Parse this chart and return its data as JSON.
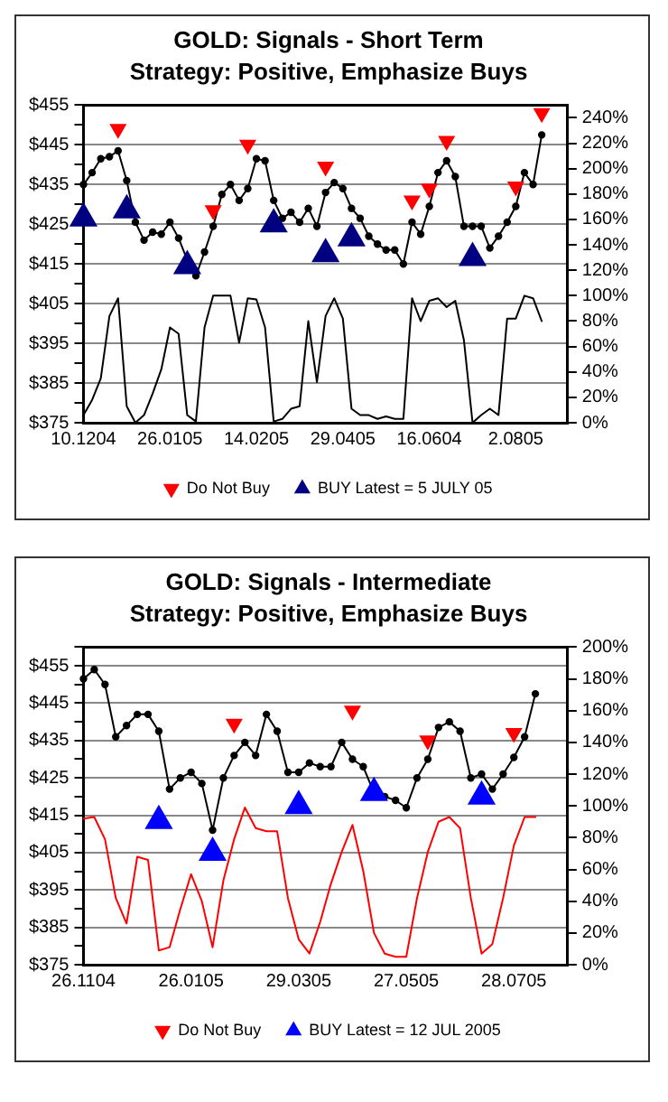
{
  "chart_data": [
    {
      "type": "line",
      "title": "GOLD: Signals - Short Term",
      "subtitle": "Strategy: Positive, Emphasize Buys",
      "grid": "y",
      "legend": "bottom",
      "line_style": "solid",
      "categories": [
        "10.1204",
        null,
        null,
        null,
        null,
        null,
        null,
        null,
        null,
        null,
        "26.0105",
        null,
        null,
        null,
        null,
        null,
        null,
        null,
        null,
        null,
        "14.0205",
        null,
        null,
        null,
        null,
        null,
        null,
        null,
        null,
        null,
        "29.0405",
        null,
        null,
        null,
        null,
        null,
        null,
        null,
        null,
        null,
        "16.0604",
        null,
        null,
        null,
        null,
        null,
        null,
        null,
        null,
        null,
        "2.0805",
        null,
        null,
        null,
        null,
        null,
        null
      ],
      "ylim": [
        375,
        455
      ],
      "yticks": [
        {
          "value": 375,
          "label": "$375"
        },
        {
          "value": 380,
          "label": null
        },
        {
          "value": 385,
          "label": "$385"
        },
        {
          "value": 390,
          "label": null
        },
        {
          "value": 395,
          "label": "$395"
        },
        {
          "value": 400,
          "label": null
        },
        {
          "value": 405,
          "label": "$405"
        },
        {
          "value": 410,
          "label": null
        },
        {
          "value": 415,
          "label": "$415"
        },
        {
          "value": 420,
          "label": null
        },
        {
          "value": 425,
          "label": "$425"
        },
        {
          "value": 430,
          "label": null
        },
        {
          "value": 435,
          "label": "$435"
        },
        {
          "value": 440,
          "label": null
        },
        {
          "value": 445,
          "label": "$445"
        },
        {
          "value": 450,
          "label": null
        },
        {
          "value": 455,
          "label": "$455"
        }
      ],
      "y2lim": [
        0,
        250
      ],
      "y2ticks": [
        {
          "value": 0,
          "label": "0%"
        },
        {
          "value": 20,
          "label": "20%"
        },
        {
          "value": 40,
          "label": "40%"
        },
        {
          "value": 60,
          "label": "60%"
        },
        {
          "value": 80,
          "label": "80%"
        },
        {
          "value": 100,
          "label": "100%"
        },
        {
          "value": 120,
          "label": "120%"
        },
        {
          "value": 140,
          "label": "140%"
        },
        {
          "value": 160,
          "label": "160%"
        },
        {
          "value": 180,
          "label": "180%"
        },
        {
          "value": 200,
          "label": "200%"
        },
        {
          "value": 220,
          "label": "220%"
        },
        {
          "value": 240,
          "label": "240%"
        }
      ],
      "series": [
        {
          "type": "line",
          "color": "#000000",
          "marker": "circle",
          "values": [
            435,
            438,
            441.5,
            442,
            443.5,
            436,
            425.5,
            421,
            423,
            422.5,
            425.5,
            421.5,
            416,
            412,
            418,
            424.5,
            432.5,
            435,
            431,
            434,
            441.5,
            441,
            431,
            426.5,
            428,
            425.5,
            429,
            424.5,
            433,
            435.5,
            434,
            429,
            426.5,
            422,
            420,
            418.5,
            418.5,
            415,
            425.5,
            422.5,
            429.5,
            438,
            441,
            437,
            424.5,
            424.5,
            424.5,
            419,
            422,
            425.5,
            429.5,
            438,
            435,
            447.5,
            null,
            null,
            null
          ]
        },
        {
          "type": "line",
          "color": "#000000",
          "marker": "none",
          "axis": "y2",
          "values": [
            6,
            18,
            35,
            84,
            98,
            13,
            0,
            6,
            23,
            42,
            75,
            70,
            6,
            1,
            75,
            100,
            100,
            100,
            63,
            98,
            97,
            75,
            1,
            3,
            11,
            13,
            80,
            32,
            84,
            98,
            82,
            11,
            6,
            6,
            3,
            5,
            3,
            3,
            98,
            80,
            96,
            98,
            91,
            96,
            65,
            0,
            6,
            11,
            6,
            82,
            82,
            100,
            98,
            80,
            null,
            null,
            null
          ]
        },
        {
          "type": "scatter",
          "name": "Do Not Buy",
          "color": "#ff0000",
          "marker": "triangle",
          "values": [
            null,
            null,
            null,
            null,
            449,
            null,
            null,
            null,
            null,
            null,
            null,
            null,
            null,
            null,
            null,
            428.5,
            null,
            null,
            null,
            445,
            null,
            null,
            null,
            null,
            null,
            null,
            null,
            null,
            439.5,
            null,
            null,
            null,
            null,
            null,
            null,
            null,
            null,
            null,
            431,
            null,
            434,
            null,
            446,
            null,
            null,
            null,
            null,
            null,
            null,
            null,
            434.5,
            null,
            null,
            453,
            null,
            null,
            null
          ]
        },
        {
          "type": "scatter",
          "name": "BUY Latest = 5 JULY 05",
          "color": "#000080",
          "marker": "triangle",
          "values": [
            426.5,
            null,
            null,
            null,
            null,
            428.5,
            null,
            null,
            null,
            null,
            null,
            null,
            414.5,
            null,
            null,
            null,
            null,
            null,
            null,
            null,
            null,
            null,
            425,
            null,
            null,
            null,
            null,
            null,
            417.5,
            null,
            null,
            421.5,
            null,
            null,
            null,
            null,
            null,
            null,
            null,
            null,
            null,
            null,
            null,
            null,
            null,
            416.5,
            null,
            null,
            null,
            null,
            null,
            null,
            null,
            null,
            null,
            null,
            null
          ]
        }
      ]
    },
    {
      "type": "line",
      "title": "GOLD: Signals - Intermediate",
      "subtitle": "Strategy: Positive, Emphasize Buys",
      "grid": "y",
      "legend": "bottom",
      "line_style": "solid",
      "categories": [
        "26.1104",
        null,
        null,
        null,
        null,
        null,
        null,
        null,
        null,
        null,
        "26.0105",
        null,
        null,
        null,
        null,
        null,
        null,
        null,
        null,
        null,
        "29.0305",
        null,
        null,
        null,
        null,
        null,
        null,
        null,
        null,
        null,
        "27.0505",
        null,
        null,
        null,
        null,
        null,
        null,
        null,
        null,
        null,
        "28.0705",
        null,
        null,
        null,
        null,
        null
      ],
      "ylim": [
        375,
        460
      ],
      "yticks": [
        {
          "value": 375,
          "label": "$375"
        },
        {
          "value": 380,
          "label": null
        },
        {
          "value": 385,
          "label": "$385"
        },
        {
          "value": 390,
          "label": null
        },
        {
          "value": 395,
          "label": "$395"
        },
        {
          "value": 400,
          "label": null
        },
        {
          "value": 405,
          "label": "$405"
        },
        {
          "value": 410,
          "label": null
        },
        {
          "value": 415,
          "label": "$415"
        },
        {
          "value": 420,
          "label": null
        },
        {
          "value": 425,
          "label": "$425"
        },
        {
          "value": 430,
          "label": null
        },
        {
          "value": 435,
          "label": "$435"
        },
        {
          "value": 440,
          "label": null
        },
        {
          "value": 445,
          "label": "$445"
        },
        {
          "value": 450,
          "label": null
        },
        {
          "value": 455,
          "label": "$455"
        },
        {
          "value": 460,
          "label": null
        }
      ],
      "y2lim": [
        0,
        200
      ],
      "y2ticks": [
        {
          "value": 0,
          "label": "0%"
        },
        {
          "value": 20,
          "label": "20%"
        },
        {
          "value": 40,
          "label": "40%"
        },
        {
          "value": 60,
          "label": "60%"
        },
        {
          "value": 80,
          "label": "80%"
        },
        {
          "value": 100,
          "label": "100%"
        },
        {
          "value": 120,
          "label": "120%"
        },
        {
          "value": 140,
          "label": "140%"
        },
        {
          "value": 160,
          "label": "160%"
        },
        {
          "value": 180,
          "label": "180%"
        },
        {
          "value": 200,
          "label": "200%"
        }
      ],
      "series": [
        {
          "type": "line",
          "color": "#000000",
          "marker": "circle",
          "values": [
            451.5,
            454,
            450,
            436,
            439,
            442,
            442,
            437.5,
            422,
            425,
            426.5,
            423.5,
            411,
            425,
            431,
            434.5,
            431,
            442,
            437.5,
            426.5,
            426.5,
            429,
            428,
            428,
            434.5,
            430,
            428,
            421,
            420,
            419,
            417,
            425,
            430,
            438.5,
            440,
            437.5,
            425,
            426,
            422,
            426,
            430.5,
            436,
            447.5,
            null,
            null,
            null
          ]
        },
        {
          "type": "line",
          "color": "#ff0000",
          "marker": "none",
          "axis": "y2",
          "values": [
            92,
            93,
            79,
            42,
            26,
            68,
            66,
            9,
            11,
            35,
            57,
            40,
            11,
            53,
            79,
            99,
            86,
            84,
            84,
            42,
            16,
            7,
            27,
            51,
            71,
            88,
            59,
            20,
            7,
            5,
            5,
            42,
            71,
            90,
            93,
            86,
            42,
            7,
            13,
            42,
            75,
            93,
            93,
            null,
            null,
            null
          ]
        },
        {
          "type": "scatter",
          "name": "Do Not Buy",
          "color": "#ff0000",
          "marker": "triangle",
          "values": [
            null,
            null,
            null,
            null,
            null,
            null,
            null,
            null,
            null,
            null,
            null,
            null,
            null,
            null,
            439.5,
            null,
            null,
            null,
            null,
            null,
            null,
            null,
            null,
            null,
            null,
            443,
            null,
            null,
            null,
            null,
            null,
            null,
            435,
            null,
            null,
            null,
            null,
            null,
            null,
            null,
            437,
            null,
            null,
            null,
            null,
            null
          ]
        },
        {
          "type": "scatter",
          "name": "BUY Latest = 12 JUL 2005",
          "color": "#0000ff",
          "marker": "triangle",
          "values": [
            null,
            null,
            null,
            null,
            null,
            null,
            null,
            413.5,
            null,
            null,
            null,
            null,
            405,
            null,
            null,
            null,
            null,
            null,
            null,
            null,
            417.5,
            null,
            null,
            null,
            null,
            null,
            null,
            421,
            null,
            null,
            null,
            null,
            null,
            null,
            null,
            null,
            null,
            420,
            null,
            null,
            null,
            null,
            null,
            null,
            null,
            null
          ]
        }
      ]
    }
  ]
}
